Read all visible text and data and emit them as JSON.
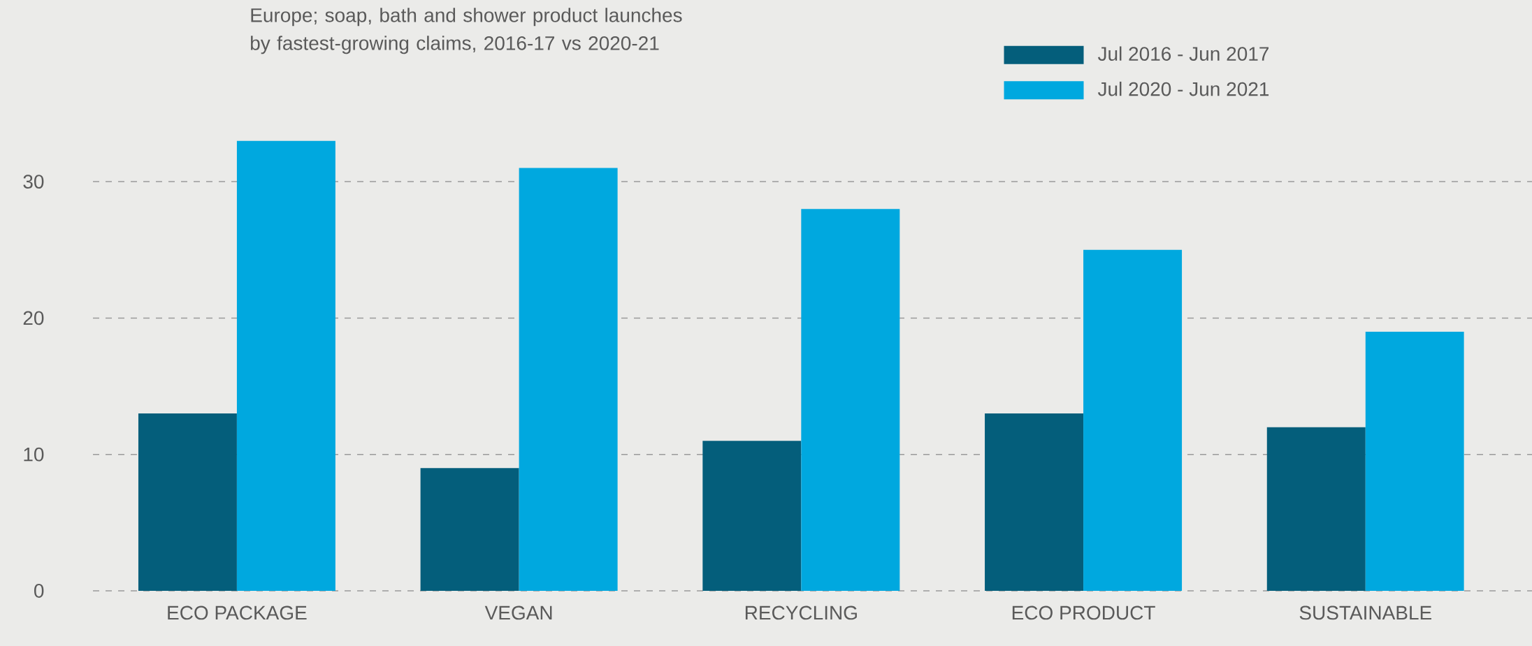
{
  "chart_data": {
    "type": "bar",
    "title": "Europe; soap, bath and shower product launches by fastest-growing claims, 2016-17 vs 2020-21",
    "categories": [
      "ECO PACKAGE",
      "VEGAN",
      "RECYCLING",
      "ECO PRODUCT",
      "SUSTAINABLE"
    ],
    "series": [
      {
        "name": "Jul 2016 - Jun 2017",
        "color": "#045e7b",
        "values": [
          13,
          9,
          11,
          13,
          12
        ]
      },
      {
        "name": "Jul 2020 - Jun 2021",
        "color": "#00a8df",
        "values": [
          33,
          31,
          28,
          25,
          19
        ]
      }
    ],
    "ylim": [
      0,
      33
    ],
    "yticks": [
      0,
      10,
      20,
      30
    ],
    "grid": "y",
    "legend": "top right"
  }
}
